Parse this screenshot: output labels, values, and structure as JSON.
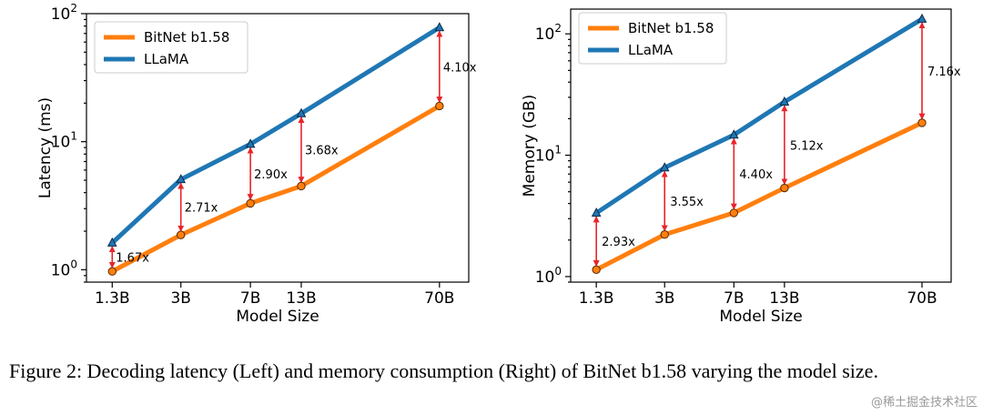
{
  "chart_data": [
    {
      "type": "line",
      "categories": [
        "1.3B",
        "3B",
        "7B",
        "13B",
        "70B"
      ],
      "x": [
        1.3,
        3,
        7,
        13,
        70
      ],
      "xlabel": "Model Size",
      "ylabel": "Latency (ms)",
      "yscale": "log",
      "ylim": [
        0.8,
        100
      ],
      "yticks": [
        1,
        10,
        100
      ],
      "legend_position": "upper-left",
      "series": [
        {
          "name": "BitNet b1.58",
          "values": [
            0.97,
            1.87,
            3.3,
            4.5,
            19.0
          ],
          "color": "#ff7f0e",
          "marker": "circle"
        },
        {
          "name": "LLaMA",
          "values": [
            1.62,
            5.07,
            9.57,
            16.6,
            77.9
          ],
          "color": "#1f77b4",
          "marker": "triangle"
        }
      ],
      "ratios": [
        "1.67x",
        "2.71x",
        "2.90x",
        "3.68x",
        "4.10x"
      ]
    },
    {
      "type": "line",
      "categories": [
        "1.3B",
        "3B",
        "7B",
        "13B",
        "70B"
      ],
      "x": [
        1.3,
        3,
        7,
        13,
        70
      ],
      "xlabel": "Model Size",
      "ylabel": "Memory (GB)",
      "yscale": "log",
      "ylim": [
        0.9,
        160
      ],
      "yticks": [
        1,
        10,
        100
      ],
      "legend_position": "upper-left",
      "series": [
        {
          "name": "BitNet b1.58",
          "values": [
            1.14,
            2.22,
            3.35,
            5.37,
            18.5
          ],
          "color": "#ff7f0e",
          "marker": "circle"
        },
        {
          "name": "LLaMA",
          "values": [
            3.34,
            7.89,
            14.7,
            27.5,
            132.5
          ],
          "color": "#1f77b4",
          "marker": "triangle"
        }
      ],
      "ratios": [
        "2.93x",
        "3.55x",
        "4.40x",
        "5.12x",
        "7.16x"
      ]
    }
  ],
  "caption": "Figure 2: Decoding latency (Left) and memory consumption (Right) of BitNet b1.58 varying the model size.",
  "watermark": "@稀土掘金技术社区",
  "colors": {
    "arrow": "#e8242a",
    "bitnet": "#ff7f0e",
    "llama": "#1f77b4"
  }
}
